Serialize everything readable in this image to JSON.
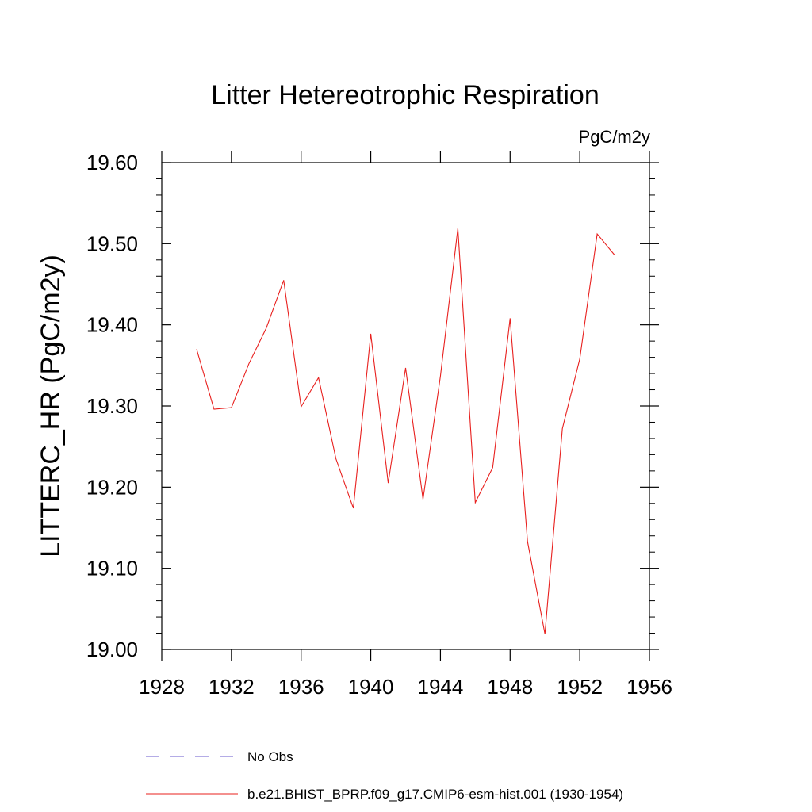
{
  "chart_data": {
    "type": "line",
    "title": "Litter Hetereotrophic Respiration",
    "units_label": "PgC/m2y",
    "xlabel": "",
    "ylabel": "LITTERC_HR  (PgC/m2y)",
    "xlim": [
      1928,
      1956
    ],
    "ylim": [
      19.0,
      19.6
    ],
    "x_ticks": [
      "1928",
      "1932",
      "1936",
      "1940",
      "1944",
      "1948",
      "1952",
      "1956"
    ],
    "y_ticks": [
      "19.00",
      "19.10",
      "19.20",
      "19.30",
      "19.40",
      "19.50",
      "19.60"
    ],
    "grid": false,
    "legend_position": "bottom",
    "series": [
      {
        "name": "No Obs",
        "color": "#6a5acd",
        "dash": "dashed",
        "x": [],
        "values": []
      },
      {
        "name": "b.e21.BHIST_BPRP.f09_g17.CMIP6-esm-hist.001 (1930-1954)",
        "color": "#e8201e",
        "dash": "solid",
        "x": [
          1930,
          1931,
          1932,
          1933,
          1934,
          1935,
          1936,
          1937,
          1938,
          1939,
          1940,
          1941,
          1942,
          1943,
          1944,
          1945,
          1946,
          1947,
          1948,
          1949,
          1950,
          1951,
          1952,
          1953,
          1954
        ],
        "values": [
          19.37,
          19.296,
          19.298,
          19.352,
          19.396,
          19.455,
          19.299,
          19.335,
          19.235,
          19.174,
          19.389,
          19.205,
          19.347,
          19.185,
          19.337,
          19.519,
          19.181,
          19.224,
          19.408,
          19.133,
          19.019,
          19.272,
          19.358,
          19.512,
          19.486
        ]
      }
    ]
  }
}
